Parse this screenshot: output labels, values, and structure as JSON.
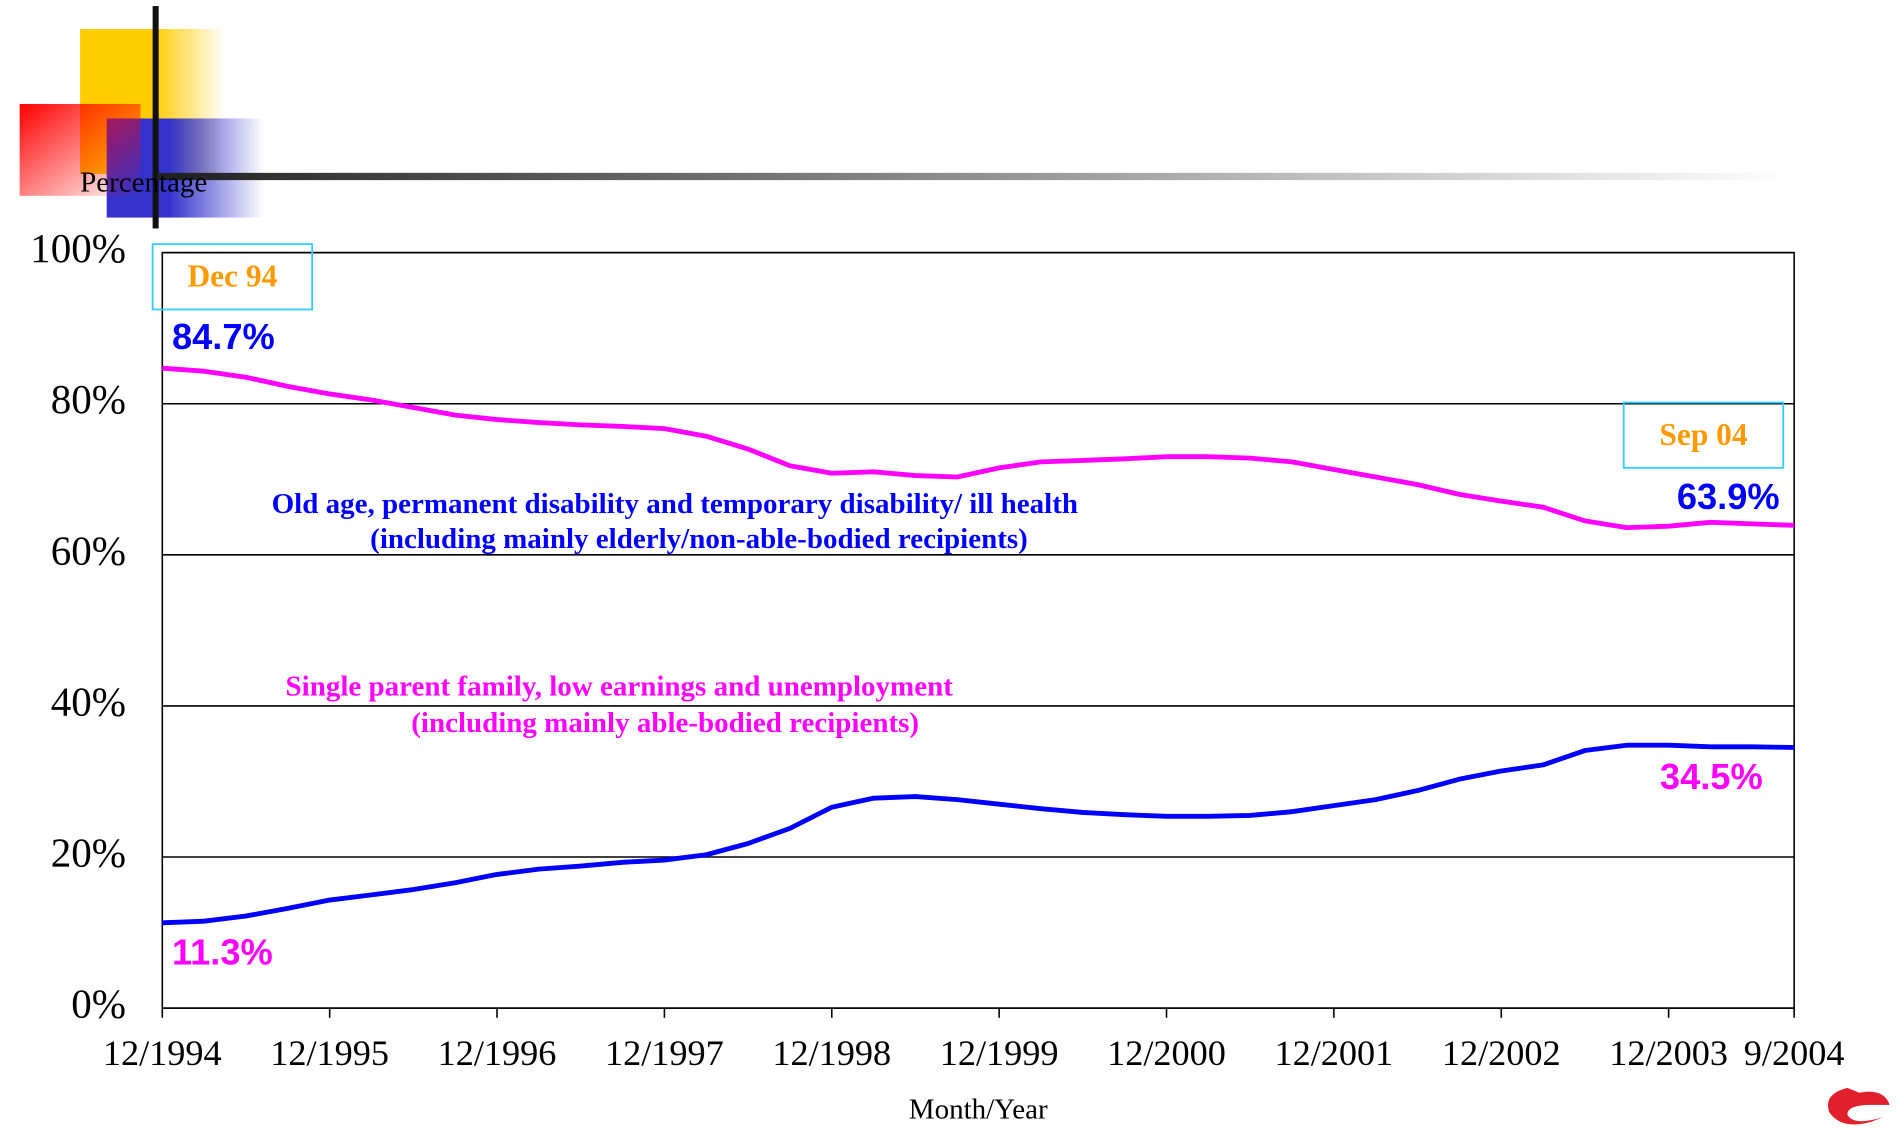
{
  "chart_data": {
    "type": "line",
    "y_label": "Percentage",
    "x_label": "Month/Year",
    "categories": [
      "12/1994",
      null,
      null,
      null,
      "12/1995",
      null,
      null,
      null,
      "12/1996",
      null,
      null,
      null,
      "12/1997",
      null,
      null,
      null,
      "12/1998",
      null,
      null,
      null,
      "12/1999",
      null,
      null,
      null,
      "12/2000",
      null,
      null,
      null,
      "12/2001",
      null,
      null,
      null,
      "12/2002",
      null,
      null,
      null,
      "12/2003",
      null,
      null,
      "9/2004"
    ],
    "ylim": [
      0,
      100
    ],
    "yticks": [
      {
        "value": 0,
        "label": "0%"
      },
      {
        "value": 20,
        "label": "20%"
      },
      {
        "value": 40,
        "label": "40%"
      },
      {
        "value": 60,
        "label": "60%"
      },
      {
        "value": 80,
        "label": "80%"
      },
      {
        "value": 100,
        "label": "100%"
      }
    ],
    "grid": true,
    "series": [
      {
        "name": "Old age, permanent disability and temporary disability/ ill health",
        "detail": "(including mainly elderly/non-able-bodied recipients)",
        "color": "#ff00ff",
        "label_color": "#0000ff",
        "values": [
          84.7,
          84.3,
          83.5,
          82.3,
          81.3,
          80.5,
          79.5,
          78.5,
          77.9,
          77.5,
          77.2,
          77.0,
          76.7,
          75.7,
          74.0,
          71.8,
          70.8,
          71.0,
          70.5,
          70.3,
          71.5,
          72.3,
          72.5,
          72.7,
          73.0,
          73.0,
          72.8,
          72.3,
          71.3,
          70.3,
          69.3,
          68.0,
          67.1,
          66.3,
          64.5,
          63.6,
          63.8,
          64.3,
          64.1,
          63.9
        ]
      },
      {
        "name": "Single parent family, low earnings and unemployment",
        "detail": "(including mainly able-bodied recipients)",
        "color": "#0000ff",
        "label_color": "#ff00ff",
        "values": [
          11.3,
          11.5,
          12.2,
          13.2,
          14.3,
          15.0,
          15.7,
          16.6,
          17.7,
          18.4,
          18.8,
          19.3,
          19.6,
          20.3,
          21.8,
          23.8,
          26.6,
          27.8,
          28.0,
          27.6,
          27.0,
          26.4,
          25.9,
          25.6,
          25.4,
          25.4,
          25.5,
          26.0,
          26.8,
          27.6,
          28.8,
          30.3,
          31.4,
          32.2,
          34.1,
          34.8,
          34.8,
          34.6,
          34.6,
          34.5
        ]
      }
    ],
    "annotations": [
      {
        "text": "Dec 94"
      },
      {
        "text": "84.7%"
      },
      {
        "text": "11.3%"
      },
      {
        "text": "Sep 04"
      },
      {
        "text": "63.9%"
      },
      {
        "text": "34.5%"
      }
    ]
  }
}
